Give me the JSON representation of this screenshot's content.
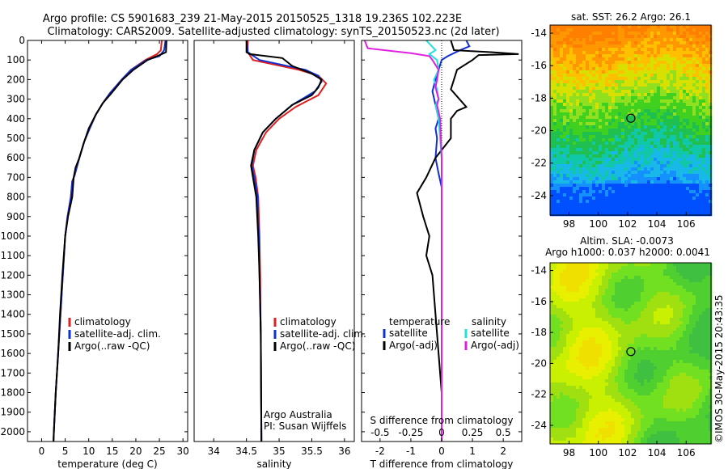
{
  "title_line1": "Argo profile: CS 5901683_239 21-May-2015 20150525_1318 19.236S 102.223E",
  "title_line2": "Climatology: CARS2009. Satellite-adjusted climatology: synTS_20150523.nc (2d later)",
  "credit": "Argo Australia",
  "pi": "PI: Susan Wijffels",
  "stamp": "©IMOS 30-May-2015 20:43:35",
  "colors": {
    "climatology": "#e02020",
    "satellite": "#1030d0",
    "argo": "#000000",
    "cyan": "#20e0e0",
    "magenta": "#e020e0"
  },
  "chart_data": [
    {
      "type": "line",
      "xlabel": "temperature (deg C)",
      "ylabel": "",
      "xlim": [
        -3,
        31
      ],
      "ylim": [
        2050,
        0
      ],
      "xticks": [
        0,
        5,
        10,
        15,
        20,
        25,
        30
      ],
      "yticks": [
        0,
        100,
        200,
        300,
        400,
        500,
        600,
        700,
        800,
        900,
        1000,
        1100,
        1200,
        1300,
        1400,
        1500,
        1600,
        1700,
        1800,
        1900,
        2000
      ],
      "legend": [
        "climatology",
        "satellite-adj. clim.",
        "Argo(..raw -QC)"
      ],
      "series": [
        {
          "name": "climatology",
          "color": "climatology",
          "points": [
            [
              25.5,
              0
            ],
            [
              25.3,
              50
            ],
            [
              24.5,
              70
            ],
            [
              22,
              100
            ],
            [
              19,
              150
            ],
            [
              17,
              200
            ],
            [
              14.5,
              270
            ],
            [
              13,
              320
            ],
            [
              11.5,
              380
            ],
            [
              10.2,
              450
            ],
            [
              9,
              520
            ],
            [
              8,
              600
            ],
            [
              7,
              690
            ],
            [
              6.5,
              720
            ],
            [
              6.2,
              800
            ],
            [
              5.5,
              900
            ],
            [
              5,
              1000
            ],
            [
              4.5,
              1200
            ],
            [
              4,
              1400
            ],
            [
              3.5,
              1600
            ],
            [
              3,
              1800
            ],
            [
              2.6,
              2000
            ],
            [
              2.5,
              2060
            ]
          ]
        },
        {
          "name": "satellite-adj. clim.",
          "color": "satellite",
          "points": [
            [
              26.3,
              0
            ],
            [
              26,
              50
            ],
            [
              25,
              80
            ],
            [
              22.3,
              100
            ],
            [
              19,
              150
            ],
            [
              17,
              200
            ],
            [
              14.5,
              270
            ],
            [
              13,
              320
            ],
            [
              11.5,
              380
            ],
            [
              10.2,
              450
            ],
            [
              9,
              520
            ],
            [
              8,
              600
            ],
            [
              7,
              690
            ],
            [
              6.5,
              720
            ],
            [
              6.2,
              800
            ],
            [
              5.5,
              900
            ],
            [
              5,
              1000
            ],
            [
              4.5,
              1200
            ],
            [
              4,
              1400
            ],
            [
              3.5,
              1600
            ],
            [
              3,
              1800
            ],
            [
              2.6,
              2000
            ],
            [
              2.5,
              2060
            ]
          ]
        },
        {
          "name": "Argo(..raw -QC)",
          "color": "argo",
          "points": [
            [
              26.5,
              0
            ],
            [
              26.4,
              60
            ],
            [
              25.5,
              70
            ],
            [
              22.5,
              100
            ],
            [
              19.5,
              150
            ],
            [
              17.2,
              200
            ],
            [
              14.8,
              270
            ],
            [
              13,
              320
            ],
            [
              11.5,
              380
            ],
            [
              10,
              450
            ],
            [
              9,
              520
            ],
            [
              8,
              600
            ],
            [
              7.2,
              650
            ],
            [
              6.8,
              700
            ],
            [
              6.5,
              800
            ],
            [
              5.6,
              900
            ],
            [
              5,
              1000
            ],
            [
              4.4,
              1200
            ],
            [
              3.9,
              1400
            ],
            [
              3.5,
              1600
            ],
            [
              3,
              1800
            ],
            [
              2.6,
              2000
            ],
            [
              2.5,
              2060
            ]
          ]
        }
      ]
    },
    {
      "type": "line",
      "xlabel": "salinity",
      "ylabel": "",
      "xlim": [
        33.7,
        36.15
      ],
      "ylim": [
        2050,
        0
      ],
      "xticks": [
        34,
        34.5,
        35,
        35.5,
        36
      ],
      "legend": [
        "climatology",
        "satellite-adj. clim.",
        "Argo(..raw -QC)"
      ],
      "series": [
        {
          "name": "climatology",
          "color": "climatology",
          "points": [
            [
              34.52,
              0
            ],
            [
              34.52,
              60
            ],
            [
              34.6,
              100
            ],
            [
              35.3,
              150
            ],
            [
              35.6,
              180
            ],
            [
              35.72,
              220
            ],
            [
              35.6,
              280
            ],
            [
              35.25,
              340
            ],
            [
              35,
              400
            ],
            [
              34.8,
              470
            ],
            [
              34.65,
              560
            ],
            [
              34.6,
              640
            ],
            [
              34.64,
              700
            ],
            [
              34.68,
              800
            ],
            [
              34.7,
              1000
            ],
            [
              34.71,
              1200
            ],
            [
              34.72,
              1500
            ],
            [
              34.73,
              2060
            ]
          ]
        },
        {
          "name": "satellite-adj. clim.",
          "color": "satellite",
          "points": [
            [
              34.5,
              0
            ],
            [
              34.52,
              60
            ],
            [
              34.7,
              100
            ],
            [
              35.4,
              150
            ],
            [
              35.6,
              180
            ],
            [
              35.65,
              210
            ],
            [
              35.55,
              260
            ],
            [
              35.2,
              330
            ],
            [
              34.95,
              400
            ],
            [
              34.75,
              470
            ],
            [
              34.62,
              560
            ],
            [
              34.58,
              640
            ],
            [
              34.62,
              700
            ],
            [
              34.67,
              800
            ],
            [
              34.69,
              1000
            ],
            [
              34.7,
              1200
            ],
            [
              34.72,
              1500
            ],
            [
              34.73,
              2060
            ]
          ]
        },
        {
          "name": "Argo(..raw -QC)",
          "color": "argo",
          "points": [
            [
              34.5,
              0
            ],
            [
              34.5,
              60
            ],
            [
              34.55,
              70
            ],
            [
              35.05,
              90
            ],
            [
              35.2,
              130
            ],
            [
              35.5,
              170
            ],
            [
              35.65,
              200
            ],
            [
              35.6,
              240
            ],
            [
              35.5,
              280
            ],
            [
              35.2,
              330
            ],
            [
              34.95,
              400
            ],
            [
              34.75,
              470
            ],
            [
              34.62,
              560
            ],
            [
              34.57,
              640
            ],
            [
              34.6,
              700
            ],
            [
              34.65,
              800
            ],
            [
              34.68,
              1000
            ],
            [
              34.7,
              1200
            ],
            [
              34.72,
              1500
            ],
            [
              34.73,
              2060
            ]
          ]
        }
      ]
    },
    {
      "type": "line",
      "xlabel": "T difference from climatology",
      "xlabel_top": "S difference from climatology",
      "xlim": [
        -2.6,
        2.6
      ],
      "ylim": [
        2050,
        0
      ],
      "xticks": [
        -2,
        -1,
        0,
        1,
        2
      ],
      "xticks_top": [
        -0.5,
        -0.25,
        0,
        0.25,
        0.5
      ],
      "legend_titles": [
        "temperature",
        "salinity"
      ],
      "legend": [
        "satellite",
        "Argo(-adj)",
        "satellite",
        "Argo(-adj)"
      ],
      "series": [
        {
          "name": "satellite",
          "color": "satellite",
          "points": [
            [
              0.8,
              0
            ],
            [
              0.9,
              30
            ],
            [
              0.6,
              50
            ],
            [
              0.2,
              80
            ],
            [
              0,
              100
            ],
            [
              -0.1,
              150
            ],
            [
              -0.2,
              200
            ],
            [
              -0.3,
              260
            ],
            [
              -0.2,
              330
            ],
            [
              -0.1,
              400
            ],
            [
              -0.2,
              450
            ],
            [
              -0.15,
              500
            ],
            [
              -0.2,
              600
            ],
            [
              -0.1,
              680
            ],
            [
              0,
              750
            ],
            [
              0,
              2060
            ]
          ]
        },
        {
          "name": "Argo(-adj)",
          "color": "argo",
          "points": [
            [
              0.3,
              0
            ],
            [
              0.4,
              50
            ],
            [
              1.6,
              60
            ],
            [
              2.5,
              70
            ],
            [
              1.2,
              75
            ],
            [
              1,
              100
            ],
            [
              0.5,
              150
            ],
            [
              0.4,
              200
            ],
            [
              0.3,
              250
            ],
            [
              0.8,
              340
            ],
            [
              0.5,
              360
            ],
            [
              0.3,
              400
            ],
            [
              0.3,
              500
            ],
            [
              -0.2,
              600
            ],
            [
              -0.5,
              700
            ],
            [
              -0.8,
              780
            ],
            [
              -0.6,
              900
            ],
            [
              -0.4,
              1000
            ],
            [
              -0.5,
              1100
            ],
            [
              -0.3,
              1200
            ],
            [
              -0.2,
              1400
            ],
            [
              -0.1,
              1600
            ],
            [
              0,
              1800
            ],
            [
              0,
              2060
            ]
          ]
        },
        {
          "name": "satellite",
          "color": "cyan",
          "points": [
            [
              -0.5,
              0
            ],
            [
              -0.2,
              50
            ],
            [
              -0.4,
              70
            ],
            [
              -0.15,
              100
            ],
            [
              -0.1,
              150
            ],
            [
              -0.25,
              200
            ],
            [
              -0.15,
              250
            ],
            [
              -0.1,
              300
            ],
            [
              -0.2,
              330
            ],
            [
              -0.1,
              400
            ],
            [
              -0.05,
              500
            ],
            [
              0,
              600
            ],
            [
              0,
              2060
            ]
          ]
        },
        {
          "name": "Argo(-adj)",
          "color": "magenta",
          "points": [
            [
              -2.5,
              0
            ],
            [
              -2.4,
              40
            ],
            [
              -1,
              65
            ],
            [
              -0.4,
              80
            ],
            [
              -0.3,
              100
            ],
            [
              -0.1,
              150
            ],
            [
              -0.15,
              200
            ],
            [
              -0.2,
              240
            ],
            [
              -0.1,
              300
            ],
            [
              -0.15,
              330
            ],
            [
              -0.05,
              400
            ],
            [
              0,
              600
            ],
            [
              0,
              2060
            ]
          ]
        }
      ]
    },
    {
      "type": "heatmap",
      "title": "sat. SST: 26.2  Argo: 26.1",
      "xlim": [
        96.7,
        107.7
      ],
      "ylim": [
        -25.2,
        -13.5
      ],
      "xticks": [
        98,
        100,
        102,
        104,
        106
      ],
      "yticks": [
        -14,
        -16,
        -18,
        -20,
        -22,
        -24
      ],
      "marker": [
        102.223,
        -19.236
      ]
    },
    {
      "type": "heatmap",
      "title": "Altim. SLA: -0.0073",
      "subtitle": "Argo h1000: 0.037 h2000: 0.0041",
      "xlim": [
        96.7,
        107.7
      ],
      "ylim": [
        -25.2,
        -13.5
      ],
      "xticks": [
        98,
        100,
        102,
        104,
        106
      ],
      "yticks": [
        -14,
        -16,
        -18,
        -20,
        -22,
        -24
      ],
      "marker": [
        102.223,
        -19.236
      ]
    }
  ]
}
